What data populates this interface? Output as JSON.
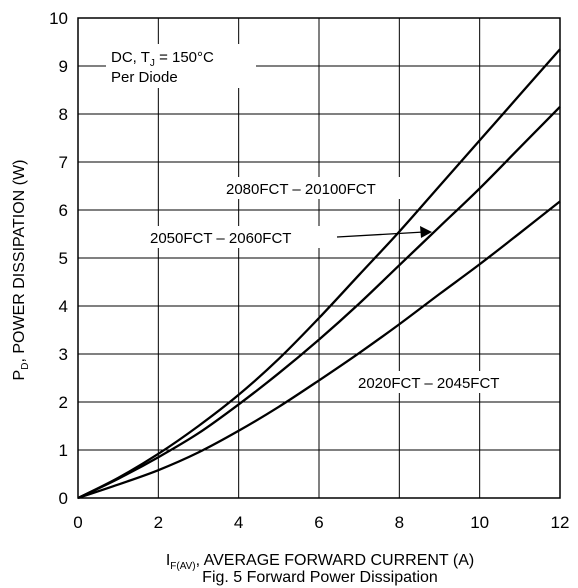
{
  "chart_data": {
    "type": "line",
    "xlim": [
      0,
      12
    ],
    "ylim": [
      0,
      10
    ],
    "x_ticks": [
      0,
      2,
      4,
      6,
      8,
      10,
      12
    ],
    "y_ticks": [
      0,
      1,
      2,
      3,
      4,
      5,
      6,
      7,
      8,
      9,
      10
    ],
    "grid": true,
    "ylabel": {
      "pre": "P",
      "sub": "D",
      "post": ", POWER DISSIPATION (W)"
    },
    "xlabel": {
      "pre": "I",
      "sub": "F(AV)",
      "post": ", AVERAGE FORWARD CURRENT (A)"
    },
    "caption": "Fig. 5 Forward Power Dissipation",
    "condition": {
      "line1_pre": "DC, T",
      "line1_sub": "J",
      "line1_post": " = 150°C",
      "line2": "Per Diode"
    },
    "series": [
      {
        "name": "2080FCT – 20100FCT",
        "x": [
          0,
          1,
          2,
          3,
          4,
          5,
          6,
          7,
          8,
          9,
          10,
          11,
          12
        ],
        "y": [
          0,
          0.42,
          0.92,
          1.5,
          2.15,
          2.9,
          3.75,
          4.65,
          5.55,
          6.5,
          7.45,
          8.4,
          9.35
        ]
      },
      {
        "name": "2050FCT – 2060FCT",
        "x": [
          0,
          1,
          2,
          3,
          4,
          5,
          6,
          7,
          8,
          9,
          10,
          11,
          12
        ],
        "y": [
          0,
          0.4,
          0.85,
          1.35,
          1.95,
          2.6,
          3.3,
          4.05,
          4.85,
          5.65,
          6.45,
          7.3,
          8.15
        ]
      },
      {
        "name": "2020FCT – 2045FCT",
        "x": [
          0,
          1,
          2,
          3,
          4,
          5,
          6,
          7,
          8,
          9,
          10,
          11,
          12
        ],
        "y": [
          0,
          0.28,
          0.58,
          0.95,
          1.4,
          1.9,
          2.45,
          3.02,
          3.62,
          4.25,
          4.87,
          5.52,
          6.18
        ]
      }
    ]
  }
}
